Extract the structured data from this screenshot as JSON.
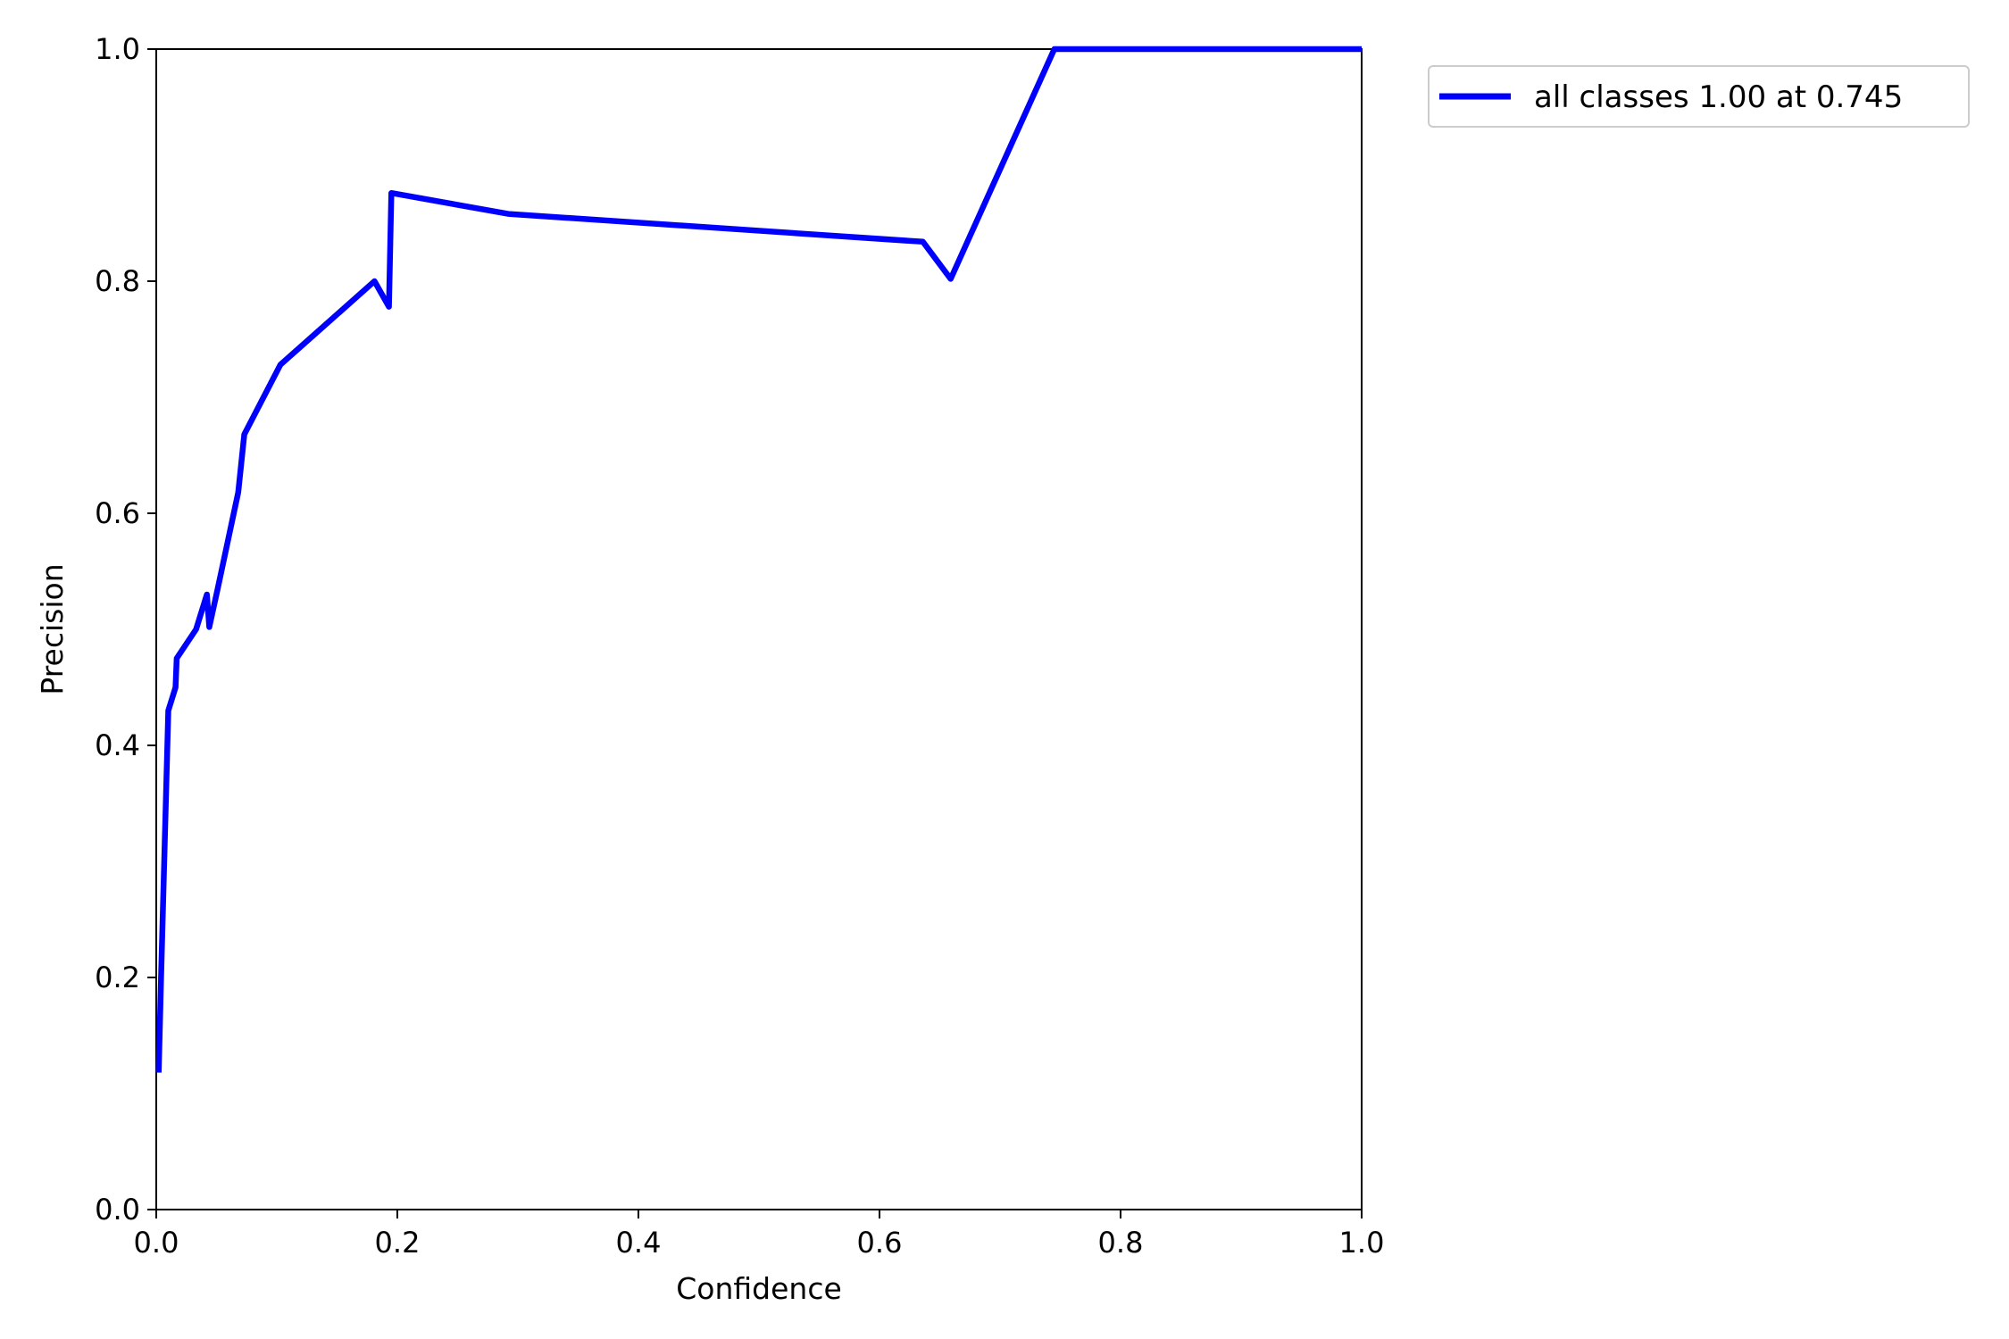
{
  "chart_data": {
    "type": "line",
    "title": "",
    "xlabel": "Confidence",
    "ylabel": "Precision",
    "xlim": [
      0,
      1
    ],
    "ylim": [
      0,
      1
    ],
    "xticks": [
      "0.0",
      "0.2",
      "0.4",
      "0.6",
      "0.8",
      "1.0"
    ],
    "yticks": [
      "0.0",
      "0.2",
      "0.4",
      "0.6",
      "0.8",
      "1.0"
    ],
    "grid": false,
    "legend_position": "outside-top-right",
    "series": [
      {
        "name": "all classes 1.00 at 0.745",
        "color": "#0000ff",
        "x": [
          0.002,
          0.004,
          0.01,
          0.016,
          0.017,
          0.033,
          0.042,
          0.044,
          0.051,
          0.068,
          0.073,
          0.103,
          0.181,
          0.193,
          0.195,
          0.292,
          0.636,
          0.659,
          0.745,
          1.0
        ],
        "y": [
          0.118,
          0.2,
          0.43,
          0.45,
          0.475,
          0.5,
          0.53,
          0.502,
          0.535,
          0.618,
          0.668,
          0.728,
          0.8,
          0.778,
          0.876,
          0.858,
          0.834,
          0.802,
          1.0,
          1.0
        ]
      }
    ]
  }
}
